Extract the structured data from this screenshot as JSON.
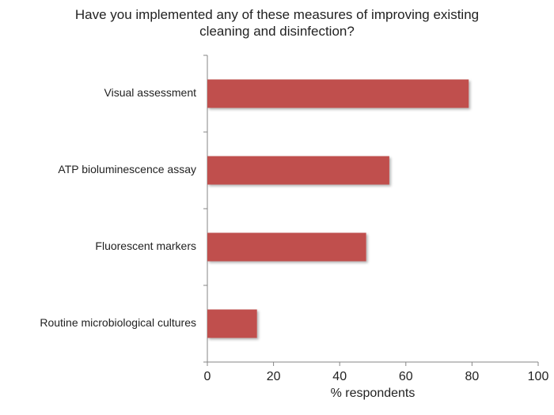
{
  "chart_data": {
    "type": "bar",
    "orientation": "horizontal",
    "title": "Have you implemented any of these measures of improving existing cleaning and disinfection?",
    "categories": [
      "Visual assessment",
      "ATP bioluminescence assay",
      "Fluorescent markers",
      "Routine microbiological  cultures"
    ],
    "values": [
      79,
      55,
      48,
      15
    ],
    "color": "#c0504d",
    "xlim": [
      0,
      100
    ],
    "xticks": [
      0,
      20,
      40,
      60,
      80,
      100
    ],
    "xlabel": "% respondents",
    "grid": false
  }
}
